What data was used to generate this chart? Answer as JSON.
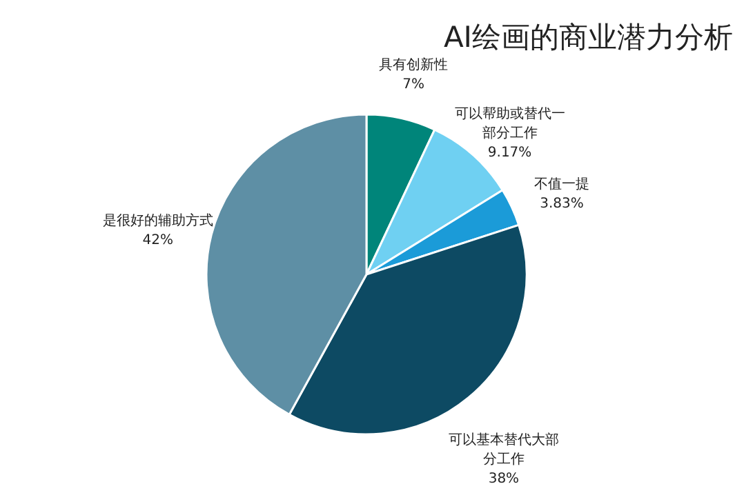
{
  "chart_data": {
    "type": "pie",
    "title": "AI绘画的商业潜力分析",
    "categories": [
      "具有创新性",
      "可以帮助或替代一部分工作",
      "不值一提",
      "可以基本替代大部分工作",
      "是很好的辅助方式"
    ],
    "values": [
      7,
      9.17,
      3.83,
      38,
      42
    ],
    "value_labels": [
      "7%",
      "9.17%",
      "3.83%",
      "38%",
      "42%"
    ],
    "colors": [
      "#00857a",
      "#6fd0f2",
      "#1b9bd8",
      "#0d4a63",
      "#5e8fa5"
    ],
    "legend": false
  }
}
